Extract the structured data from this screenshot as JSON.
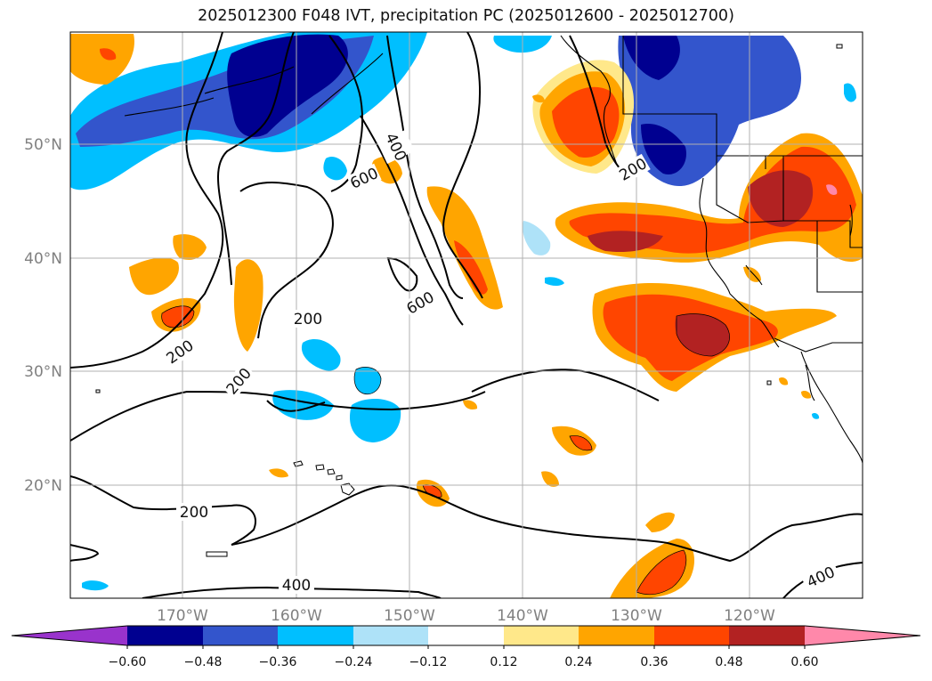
{
  "title": "2025012300 F048 IVT, precipitation PC (2025012600 - 2025012700)",
  "map": {
    "lat_labels": [
      "50°N",
      "40°N",
      "30°N",
      "20°N"
    ],
    "lon_labels": [
      "170°W",
      "160°W",
      "150°W",
      "140°W",
      "130°W",
      "120°W"
    ],
    "ivt_contour_labels": [
      "400",
      "600",
      "200",
      "600",
      "200",
      "200",
      "200",
      "200",
      "400",
      "400"
    ],
    "gridlines": true
  },
  "colorbar": {
    "extend": "both",
    "tick_labels": [
      "−0.60",
      "−0.48",
      "−0.36",
      "−0.24",
      "−0.12",
      "0.12",
      "0.24",
      "0.36",
      "0.48",
      "0.60"
    ],
    "colors": [
      "#9933cc",
      "#000090",
      "#3355cc",
      "#00bfff",
      "#aee2f8",
      "#ffffff",
      "#ffe88a",
      "#ffa500",
      "#ff4500",
      "#b22222",
      "#ff88aa"
    ]
  }
}
